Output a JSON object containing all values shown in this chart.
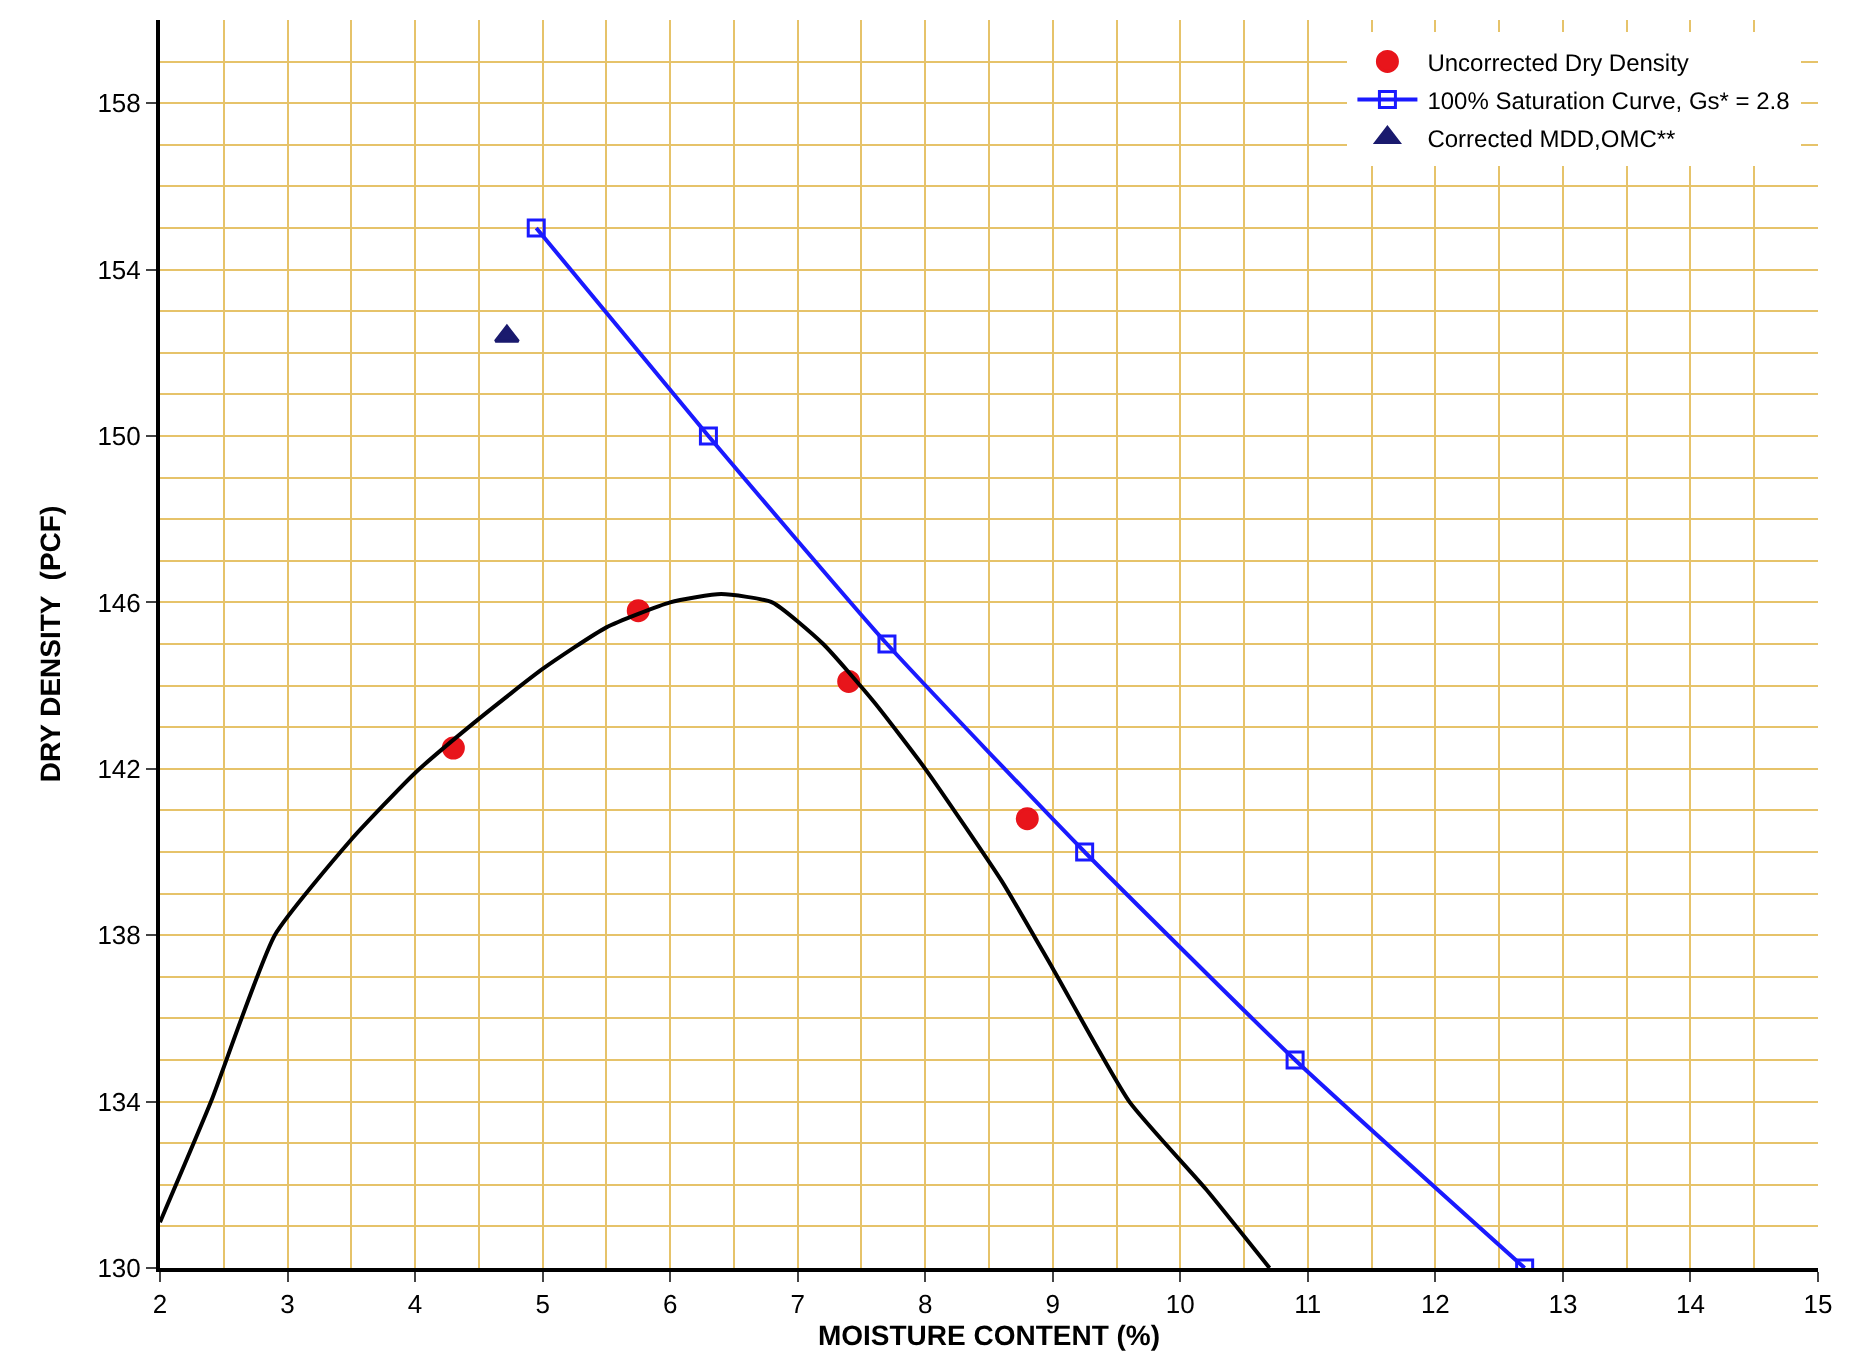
{
  "chart_data": {
    "type": "scatter",
    "xlabel": "MOISTURE CONTENT (%)",
    "ylabel": "DRY DENSITY  (PCF)",
    "xlim": [
      2,
      15
    ],
    "xticks": [
      2,
      3,
      4,
      5,
      6,
      7,
      8,
      9,
      10,
      11,
      12,
      13,
      14,
      15
    ],
    "ylim": [
      130,
      160
    ],
    "yticks": [
      130,
      134,
      138,
      142,
      146,
      150,
      154,
      158
    ],
    "grid": true,
    "legend": "top right",
    "series": [
      {
        "name": "Uncorrected Dry Density",
        "marker": "circle",
        "color": "#e8151b",
        "x": [
          4.3,
          5.75,
          7.4,
          8.8
        ],
        "values": [
          142.5,
          145.8,
          144.1,
          140.8
        ]
      },
      {
        "name": "100% Saturation Curve, Gs* = 2.8",
        "type": "line",
        "marker": "square",
        "color": "#1a1aff",
        "x": [
          4.95,
          6.3,
          7.7,
          9.25,
          10.9,
          12.7
        ],
        "values": [
          155,
          150,
          145,
          140,
          135,
          130
        ]
      },
      {
        "name": "Corrected MDD,OMC**",
        "marker": "triangle",
        "color": "#1a1a6e",
        "x": [
          4.72
        ],
        "values": [
          152.4
        ]
      },
      {
        "type": "line",
        "marker": "none",
        "color": "#000000",
        "x": [
          2,
          2.4,
          2.9,
          3.5,
          4,
          4.5,
          5,
          5.5,
          6,
          6.4,
          6.8,
          7.2,
          7.6,
          8,
          8.6,
          9,
          9.6,
          10.2,
          10.7
        ],
        "values": [
          131.1,
          134,
          138,
          140.3,
          141.9,
          143.2,
          144.4,
          145.4,
          146,
          146.2,
          146,
          145,
          143.6,
          142,
          139.3,
          137.2,
          134,
          131.9,
          130
        ]
      }
    ]
  }
}
